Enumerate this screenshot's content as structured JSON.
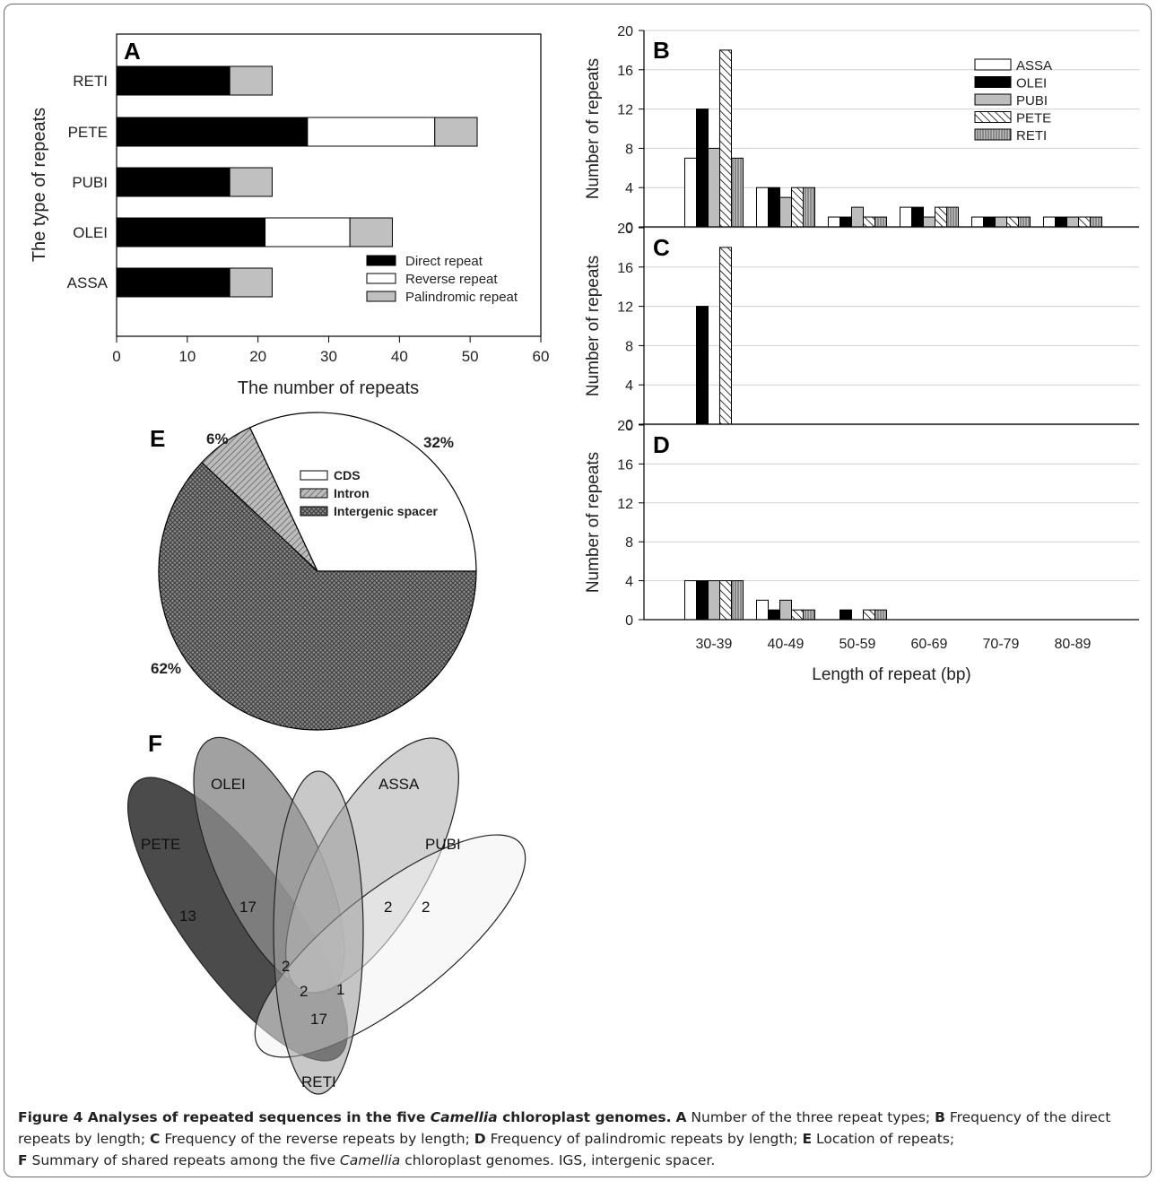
{
  "chart_data": [
    {
      "panel": "A",
      "type": "bar",
      "orientation": "horizontal",
      "stacked": true,
      "categories": [
        "RETI",
        "PETE",
        "PUBI",
        "OLEI",
        "ASSA"
      ],
      "series": [
        {
          "name": "Direct repeat",
          "color": "#000000",
          "values": [
            16,
            27,
            16,
            21,
            16
          ]
        },
        {
          "name": "Reverse repeat",
          "color": "#ffffff",
          "values": [
            0,
            18,
            0,
            12,
            0
          ]
        },
        {
          "name": "Palindromic repeat",
          "color": "#c0c0c0",
          "values": [
            6,
            6,
            6,
            6,
            6
          ]
        }
      ],
      "xlabel": "The number of repeats",
      "ylabel": "The type of repeats",
      "xlim": [
        0,
        60
      ],
      "xticks": [
        "0",
        "10",
        "20",
        "30",
        "40",
        "50",
        "60"
      ],
      "legend": "bottom-right"
    },
    {
      "panel": "B",
      "type": "bar",
      "categories": [
        "30-39",
        "40-49",
        "50-59",
        "60-69",
        "70-79",
        "80-89"
      ],
      "series": [
        {
          "name": "ASSA",
          "pattern": "white",
          "values": [
            7,
            4,
            1,
            2,
            1,
            1
          ]
        },
        {
          "name": "OLEI",
          "pattern": "black",
          "values": [
            12,
            4,
            1,
            2,
            1,
            1
          ]
        },
        {
          "name": "PUBI",
          "pattern": "gray",
          "values": [
            8,
            3,
            2,
            1,
            1,
            1
          ]
        },
        {
          "name": "PETE",
          "pattern": "diagonal",
          "values": [
            18,
            4,
            1,
            2,
            1,
            1
          ]
        },
        {
          "name": "RETI",
          "pattern": "vertical",
          "values": [
            7,
            4,
            1,
            2,
            1,
            1
          ]
        }
      ],
      "ylabel": "Number of repeats",
      "ylim": [
        0,
        20
      ],
      "yticks": [
        "0",
        "4",
        "8",
        "12",
        "16",
        "20"
      ],
      "grid": true,
      "legend": "top-right"
    },
    {
      "panel": "C",
      "type": "bar",
      "categories": [
        "30-39",
        "40-49",
        "50-59",
        "60-69",
        "70-79",
        "80-89"
      ],
      "series": [
        {
          "name": "ASSA",
          "pattern": "white",
          "values": [
            0,
            0,
            0,
            0,
            0,
            0
          ]
        },
        {
          "name": "OLEI",
          "pattern": "black",
          "values": [
            12,
            0,
            0,
            0,
            0,
            0
          ]
        },
        {
          "name": "PUBI",
          "pattern": "gray",
          "values": [
            0,
            0,
            0,
            0,
            0,
            0
          ]
        },
        {
          "name": "PETE",
          "pattern": "diagonal",
          "values": [
            18,
            0,
            0,
            0,
            0,
            0
          ]
        },
        {
          "name": "RETI",
          "pattern": "vertical",
          "values": [
            0,
            0,
            0,
            0,
            0,
            0
          ]
        }
      ],
      "ylabel": "Number of repeats",
      "ylim": [
        0,
        20
      ],
      "yticks": [
        "0",
        "4",
        "8",
        "12",
        "16",
        "20"
      ],
      "grid": true
    },
    {
      "panel": "D",
      "type": "bar",
      "categories": [
        "30-39",
        "40-49",
        "50-59",
        "60-69",
        "70-79",
        "80-89"
      ],
      "series": [
        {
          "name": "ASSA",
          "pattern": "white",
          "values": [
            4,
            2,
            0,
            0,
            0,
            0
          ]
        },
        {
          "name": "OLEI",
          "pattern": "black",
          "values": [
            4,
            1,
            1,
            0,
            0,
            0
          ]
        },
        {
          "name": "PUBI",
          "pattern": "gray",
          "values": [
            4,
            2,
            0,
            0,
            0,
            0
          ]
        },
        {
          "name": "PETE",
          "pattern": "diagonal",
          "values": [
            4,
            1,
            1,
            0,
            0,
            0
          ]
        },
        {
          "name": "RETI",
          "pattern": "vertical",
          "values": [
            4,
            1,
            1,
            0,
            0,
            0
          ]
        }
      ],
      "xlabel": "Length of repeat (bp)",
      "ylabel": "Number of repeats",
      "ylim": [
        0,
        20
      ],
      "yticks": [
        "0",
        "4",
        "8",
        "12",
        "16",
        "20"
      ],
      "grid": true
    },
    {
      "panel": "E",
      "type": "pie",
      "slices": [
        {
          "name": "CDS",
          "value": 32,
          "label": "32%",
          "pattern": "white"
        },
        {
          "name": "Intron",
          "value": 6,
          "label": "6%",
          "pattern": "hatched"
        },
        {
          "name": "Intergenic spacer",
          "value": 62,
          "label": "62%",
          "pattern": "crosshatch"
        }
      ],
      "legend": "inside-top"
    },
    {
      "panel": "F",
      "type": "venn",
      "sets": [
        "PETE",
        "OLEI",
        "ASSA",
        "PUBI",
        "RETI"
      ],
      "region_counts": [
        "13",
        "17",
        "2",
        "2",
        "2",
        "2",
        "1",
        "17"
      ]
    }
  ],
  "caption": {
    "bold_lead": "Figure 4 Analyses of repeated sequences in the five ",
    "bold_italic": "Camellia",
    "bold_tail": " chloroplast genomes.",
    "parts": [
      {
        "b": "A",
        "t": " Number of the three repeat types; "
      },
      {
        "b": "B",
        "t": " Frequency of the direct repeats by length; "
      },
      {
        "b": "C",
        "t": " Frequency of the reverse repeats by length; "
      },
      {
        "b": "D",
        "t": " Frequency of palindromic repeats by length; "
      },
      {
        "b": "E",
        "t": " Location of repeats; "
      },
      {
        "b": "F",
        "t": " Summary of shared repeats among the five "
      }
    ],
    "end_italic": "Camellia",
    "end_text": " chloroplast genomes. IGS, intergenic spacer."
  }
}
